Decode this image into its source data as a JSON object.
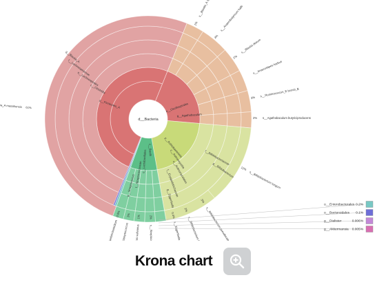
{
  "caption": {
    "title": "Krona chart",
    "zoom_icon": "zoom-in-icon"
  },
  "colors": {
    "firmicutes": "#e1a3a3",
    "firmicutes_inner": "#d97474",
    "other_firmicutes": "#e8bfa0",
    "actinobacteria": "#d9e3a1",
    "actino_inner": "#c8da79",
    "bacilli": "#7fcfa0",
    "bacilli_inner": "#5cbf88",
    "enterobacterales": "#78c8c4",
    "bacteroidales": "#6d6ed8",
    "dialister": "#c389d8",
    "akkermansia": "#d86fb2"
  },
  "chart_data": {
    "type": "sunburst",
    "root": "d__Bacteria",
    "ring_labels": [
      "d__Bacteria",
      "p__Firmicutes_A",
      "c__Clostridia",
      "o__Lachnospirales",
      "f__Lachnospiraceae",
      "g__Blautia_A",
      "p__Actinobacteriota",
      "c__Actinomycetia",
      "o__Actinomycetales",
      "f__Bifidobacteriaceae",
      "g__Bifidobacterium",
      "c__Bacilli",
      "o__Lactobacillales",
      "f__Streptococcaceae",
      "g__Streptococcus",
      "f__Erysipelotrichaceae",
      "g__Eggerthella",
      "o__Oscillospirales",
      "g__Agathobaculum"
    ],
    "leaves": [
      {
        "label": "s__Blautia_A massiliensis",
        "percent": "61%"
      },
      {
        "label": "s__Blautia_A sp003471165",
        "percent": "1%"
      },
      {
        "label": "s__Anaerobutyricum hallii",
        "percent": "4%"
      },
      {
        "label": "s__Blautia obeum",
        "percent": "2%"
      },
      {
        "label": "s__Anaerostipes hadrus",
        "percent": ""
      },
      {
        "label": "s__Ruminococcus_E bromii_B",
        "percent": "3%"
      },
      {
        "label": "s__Agathobaculum butyriciproducens",
        "percent": "2%"
      },
      {
        "label": "s__Bifidobacterium longum",
        "percent": "12%"
      },
      {
        "label": "s__Bifidobacterium pseudocatenulatum",
        "percent": "3%"
      },
      {
        "label": "s__Bifidobacterium breve",
        "percent": "2%"
      },
      {
        "label": "s__Eggerthella lenta",
        "percent": "0.4%"
      },
      {
        "label": "s__Streptococcus thermophilus",
        "percent": "2%"
      },
      {
        "label": "s__Streptococcus salivarius",
        "percent": "1%"
      },
      {
        "label": "s__Streptococcus",
        "percent": "1%"
      },
      {
        "label": "s__Erysipelatoclostridium",
        "percent": "0.8%"
      }
    ],
    "legend": [
      {
        "label": "o__Enterobacterales",
        "value": "0.2%",
        "color": "#78c8c4"
      },
      {
        "label": "o__Bacteroidales",
        "value": "0.1%",
        "color": "#6d6ed8"
      },
      {
        "label": "g__Dialister",
        "value": "0.006%",
        "color": "#c389d8"
      },
      {
        "label": "g__Akkermansia",
        "value": "0.005%",
        "color": "#d86fb2"
      }
    ]
  }
}
